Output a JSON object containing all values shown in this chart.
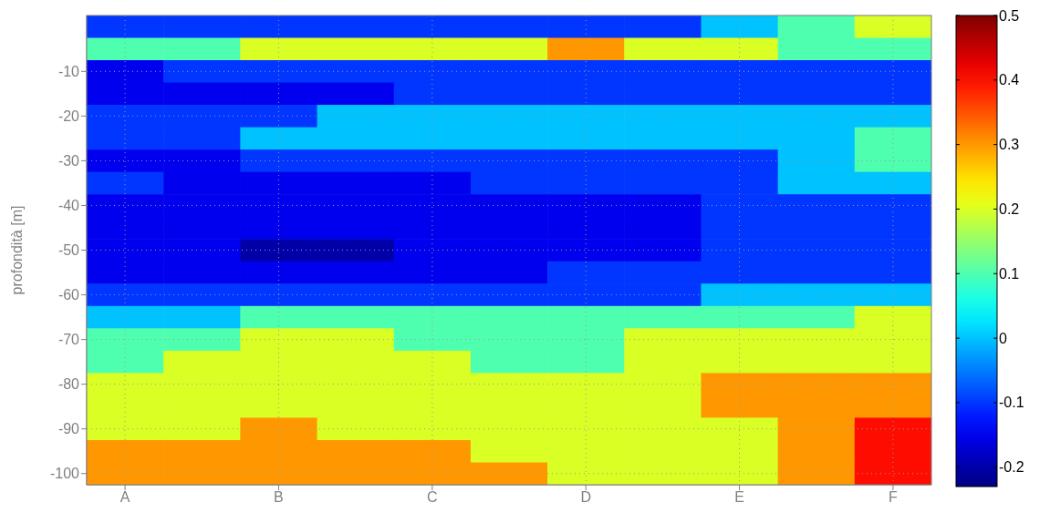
{
  "chart_data": {
    "type": "heatmap",
    "ylabel": "profondità [m]",
    "categories": [
      "A",
      null,
      "B",
      null,
      "C",
      null,
      "D",
      null,
      "E",
      null,
      "F"
    ],
    "y_categories": [
      null,
      null,
      "-10",
      null,
      "-20",
      null,
      "-30",
      null,
      "-40",
      null,
      "-50",
      null,
      "-60",
      null,
      "-70",
      null,
      "-80",
      null,
      "-90",
      null,
      "-100"
    ],
    "cells": [
      [
        -0.1,
        -0.1,
        -0.1,
        -0.1,
        -0.1,
        -0.1,
        -0.1,
        -0.1,
        0,
        0.1,
        0.2
      ],
      [
        0.1,
        0.1,
        0.2,
        0.2,
        0.2,
        0.2,
        0.3,
        0.2,
        0.2,
        0.1,
        0.1
      ],
      [
        -0.15,
        -0.1,
        -0.1,
        -0.1,
        -0.1,
        -0.1,
        -0.1,
        -0.1,
        -0.1,
        -0.1,
        -0.1
      ],
      [
        -0.15,
        -0.15,
        -0.15,
        -0.15,
        -0.1,
        -0.1,
        -0.1,
        -0.1,
        -0.1,
        -0.1,
        -0.1
      ],
      [
        -0.1,
        -0.1,
        -0.1,
        0,
        0,
        0,
        0,
        0,
        0,
        0,
        0
      ],
      [
        -0.1,
        -0.1,
        0,
        0,
        0,
        0,
        0,
        0,
        0,
        0,
        0.1
      ],
      [
        -0.15,
        -0.15,
        -0.1,
        -0.1,
        -0.1,
        -0.1,
        -0.1,
        -0.1,
        -0.1,
        0,
        0.1
      ],
      [
        -0.1,
        -0.15,
        -0.15,
        -0.15,
        -0.15,
        -0.1,
        -0.1,
        -0.1,
        -0.1,
        0,
        0
      ],
      [
        -0.15,
        -0.15,
        -0.15,
        -0.15,
        -0.15,
        -0.15,
        -0.15,
        -0.15,
        -0.1,
        -0.1,
        -0.1
      ],
      [
        -0.15,
        -0.15,
        -0.15,
        -0.15,
        -0.15,
        -0.15,
        -0.15,
        -0.15,
        -0.1,
        -0.1,
        -0.1
      ],
      [
        -0.15,
        -0.15,
        -0.2,
        -0.2,
        -0.15,
        -0.15,
        -0.15,
        -0.15,
        -0.1,
        -0.1,
        -0.1
      ],
      [
        -0.15,
        -0.15,
        -0.15,
        -0.15,
        -0.15,
        -0.15,
        -0.1,
        -0.1,
        -0.1,
        -0.1,
        -0.1
      ],
      [
        -0.1,
        -0.1,
        -0.1,
        -0.1,
        -0.1,
        -0.1,
        -0.1,
        -0.1,
        0,
        0,
        0
      ],
      [
        0,
        0,
        0.1,
        0.1,
        0.1,
        0.1,
        0.1,
        0.1,
        0.1,
        0.1,
        0.2
      ],
      [
        0.1,
        0.1,
        0.2,
        0.2,
        0.1,
        0.1,
        0.1,
        0.2,
        0.2,
        0.2,
        0.2
      ],
      [
        0.1,
        0.2,
        0.2,
        0.2,
        0.2,
        0.1,
        0.1,
        0.2,
        0.2,
        0.2,
        0.2
      ],
      [
        0.2,
        0.2,
        0.2,
        0.2,
        0.2,
        0.2,
        0.2,
        0.2,
        0.3,
        0.3,
        0.3
      ],
      [
        0.2,
        0.2,
        0.2,
        0.2,
        0.2,
        0.2,
        0.2,
        0.2,
        0.3,
        0.3,
        0.3
      ],
      [
        0.2,
        0.2,
        0.3,
        0.2,
        0.2,
        0.2,
        0.2,
        0.2,
        0.2,
        0.3,
        0.4
      ],
      [
        0.3,
        0.3,
        0.3,
        0.3,
        0.3,
        0.2,
        0.2,
        0.2,
        0.2,
        0.3,
        0.4
      ],
      [
        0.3,
        0.3,
        0.3,
        0.3,
        0.3,
        0.3,
        0.2,
        0.2,
        0.2,
        0.3,
        0.4
      ]
    ],
    "clim": [
      -0.23,
      0.5
    ],
    "cticks": [
      -0.2,
      -0.1,
      0,
      0.1,
      0.2,
      0.3,
      0.4,
      0.5
    ],
    "grid": true
  }
}
